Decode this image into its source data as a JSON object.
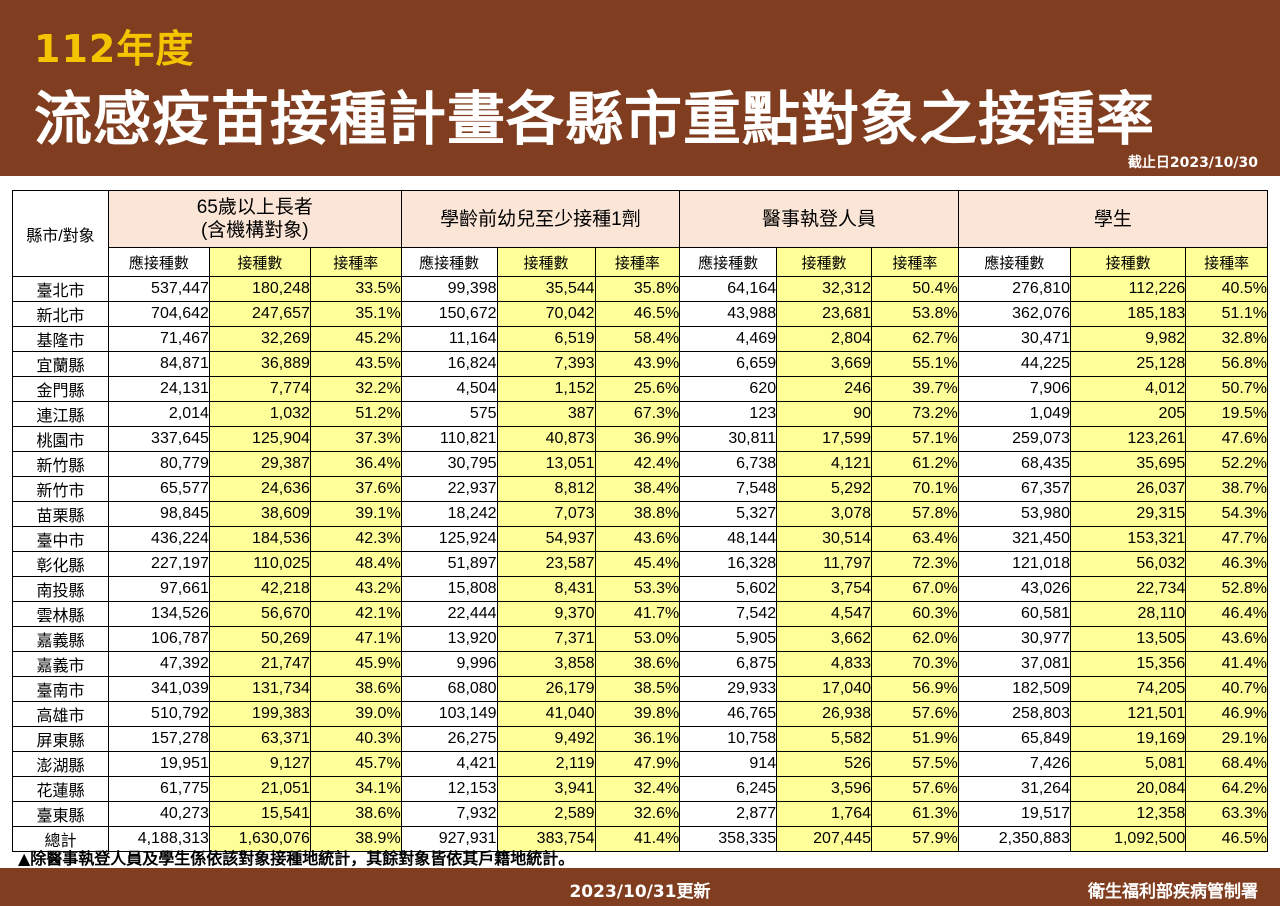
{
  "header": {
    "year": "112年度",
    "title": "流感疫苗接種計畫各縣市重點對象之接種率",
    "cutoff": "截止日2023/10/30"
  },
  "table": {
    "corner": "縣市/對象",
    "groups": [
      {
        "line1": "65歲以上長者",
        "line2": "(含機構對象)"
      },
      {
        "line1": "學齡前幼兒至少接種1劑",
        "line2": ""
      },
      {
        "line1": "醫事執登人員",
        "line2": ""
      },
      {
        "line1": "學生",
        "line2": ""
      }
    ],
    "subheaders": [
      "應接種數",
      "接種數",
      "接種率"
    ],
    "rows": [
      {
        "name": "臺北市",
        "values": [
          "537,447",
          "180,248",
          "33.5%",
          "99,398",
          "35,544",
          "35.8%",
          "64,164",
          "32,312",
          "50.4%",
          "276,810",
          "112,226",
          "40.5%"
        ]
      },
      {
        "name": "新北市",
        "values": [
          "704,642",
          "247,657",
          "35.1%",
          "150,672",
          "70,042",
          "46.5%",
          "43,988",
          "23,681",
          "53.8%",
          "362,076",
          "185,183",
          "51.1%"
        ]
      },
      {
        "name": "基隆市",
        "values": [
          "71,467",
          "32,269",
          "45.2%",
          "11,164",
          "6,519",
          "58.4%",
          "4,469",
          "2,804",
          "62.7%",
          "30,471",
          "9,982",
          "32.8%"
        ]
      },
      {
        "name": "宜蘭縣",
        "values": [
          "84,871",
          "36,889",
          "43.5%",
          "16,824",
          "7,393",
          "43.9%",
          "6,659",
          "3,669",
          "55.1%",
          "44,225",
          "25,128",
          "56.8%"
        ]
      },
      {
        "name": "金門縣",
        "values": [
          "24,131",
          "7,774",
          "32.2%",
          "4,504",
          "1,152",
          "25.6%",
          "620",
          "246",
          "39.7%",
          "7,906",
          "4,012",
          "50.7%"
        ]
      },
      {
        "name": "連江縣",
        "values": [
          "2,014",
          "1,032",
          "51.2%",
          "575",
          "387",
          "67.3%",
          "123",
          "90",
          "73.2%",
          "1,049",
          "205",
          "19.5%"
        ]
      },
      {
        "name": "桃園市",
        "values": [
          "337,645",
          "125,904",
          "37.3%",
          "110,821",
          "40,873",
          "36.9%",
          "30,811",
          "17,599",
          "57.1%",
          "259,073",
          "123,261",
          "47.6%"
        ]
      },
      {
        "name": "新竹縣",
        "values": [
          "80,779",
          "29,387",
          "36.4%",
          "30,795",
          "13,051",
          "42.4%",
          "6,738",
          "4,121",
          "61.2%",
          "68,435",
          "35,695",
          "52.2%"
        ]
      },
      {
        "name": "新竹市",
        "values": [
          "65,577",
          "24,636",
          "37.6%",
          "22,937",
          "8,812",
          "38.4%",
          "7,548",
          "5,292",
          "70.1%",
          "67,357",
          "26,037",
          "38.7%"
        ]
      },
      {
        "name": "苗栗縣",
        "values": [
          "98,845",
          "38,609",
          "39.1%",
          "18,242",
          "7,073",
          "38.8%",
          "5,327",
          "3,078",
          "57.8%",
          "53,980",
          "29,315",
          "54.3%"
        ]
      },
      {
        "name": "臺中市",
        "values": [
          "436,224",
          "184,536",
          "42.3%",
          "125,924",
          "54,937",
          "43.6%",
          "48,144",
          "30,514",
          "63.4%",
          "321,450",
          "153,321",
          "47.7%"
        ]
      },
      {
        "name": "彰化縣",
        "values": [
          "227,197",
          "110,025",
          "48.4%",
          "51,897",
          "23,587",
          "45.4%",
          "16,328",
          "11,797",
          "72.3%",
          "121,018",
          "56,032",
          "46.3%"
        ]
      },
      {
        "name": "南投縣",
        "values": [
          "97,661",
          "42,218",
          "43.2%",
          "15,808",
          "8,431",
          "53.3%",
          "5,602",
          "3,754",
          "67.0%",
          "43,026",
          "22,734",
          "52.8%"
        ]
      },
      {
        "name": "雲林縣",
        "values": [
          "134,526",
          "56,670",
          "42.1%",
          "22,444",
          "9,370",
          "41.7%",
          "7,542",
          "4,547",
          "60.3%",
          "60,581",
          "28,110",
          "46.4%"
        ]
      },
      {
        "name": "嘉義縣",
        "values": [
          "106,787",
          "50,269",
          "47.1%",
          "13,920",
          "7,371",
          "53.0%",
          "5,905",
          "3,662",
          "62.0%",
          "30,977",
          "13,505",
          "43.6%"
        ]
      },
      {
        "name": "嘉義市",
        "values": [
          "47,392",
          "21,747",
          "45.9%",
          "9,996",
          "3,858",
          "38.6%",
          "6,875",
          "4,833",
          "70.3%",
          "37,081",
          "15,356",
          "41.4%"
        ]
      },
      {
        "name": "臺南市",
        "values": [
          "341,039",
          "131,734",
          "38.6%",
          "68,080",
          "26,179",
          "38.5%",
          "29,933",
          "17,040",
          "56.9%",
          "182,509",
          "74,205",
          "40.7%"
        ]
      },
      {
        "name": "高雄市",
        "values": [
          "510,792",
          "199,383",
          "39.0%",
          "103,149",
          "41,040",
          "39.8%",
          "46,765",
          "26,938",
          "57.6%",
          "258,803",
          "121,501",
          "46.9%"
        ]
      },
      {
        "name": "屏東縣",
        "values": [
          "157,278",
          "63,371",
          "40.3%",
          "26,275",
          "9,492",
          "36.1%",
          "10,758",
          "5,582",
          "51.9%",
          "65,849",
          "19,169",
          "29.1%"
        ]
      },
      {
        "name": "澎湖縣",
        "values": [
          "19,951",
          "9,127",
          "45.7%",
          "4,421",
          "2,119",
          "47.9%",
          "914",
          "526",
          "57.5%",
          "7,426",
          "5,081",
          "68.4%"
        ]
      },
      {
        "name": "花蓮縣",
        "values": [
          "61,775",
          "21,051",
          "34.1%",
          "12,153",
          "3,941",
          "32.4%",
          "6,245",
          "3,596",
          "57.6%",
          "31,264",
          "20,084",
          "64.2%"
        ]
      },
      {
        "name": "臺東縣",
        "values": [
          "40,273",
          "15,541",
          "38.6%",
          "7,932",
          "2,589",
          "32.6%",
          "2,877",
          "1,764",
          "61.3%",
          "19,517",
          "12,358",
          "63.3%"
        ]
      }
    ],
    "total": {
      "name": "總計",
      "values": [
        "4,188,313",
        "1,630,076",
        "38.9%",
        "927,931",
        "383,754",
        "41.4%",
        "358,335",
        "207,445",
        "57.9%",
        "2,350,883",
        "1,092,500",
        "46.5%"
      ]
    }
  },
  "note": "▲除醫事執登人員及學生係依該對象接種地統計，其餘對象皆依其戶籍地統計。",
  "footer": {
    "updated": "2023/10/31更新",
    "org": "衛生福利部疾病管制署"
  },
  "colors": {
    "brand": "#803d1f",
    "year_text": "#f5c400",
    "group_header_bg": "#fbe5d6",
    "highlight": "#ffff99"
  }
}
